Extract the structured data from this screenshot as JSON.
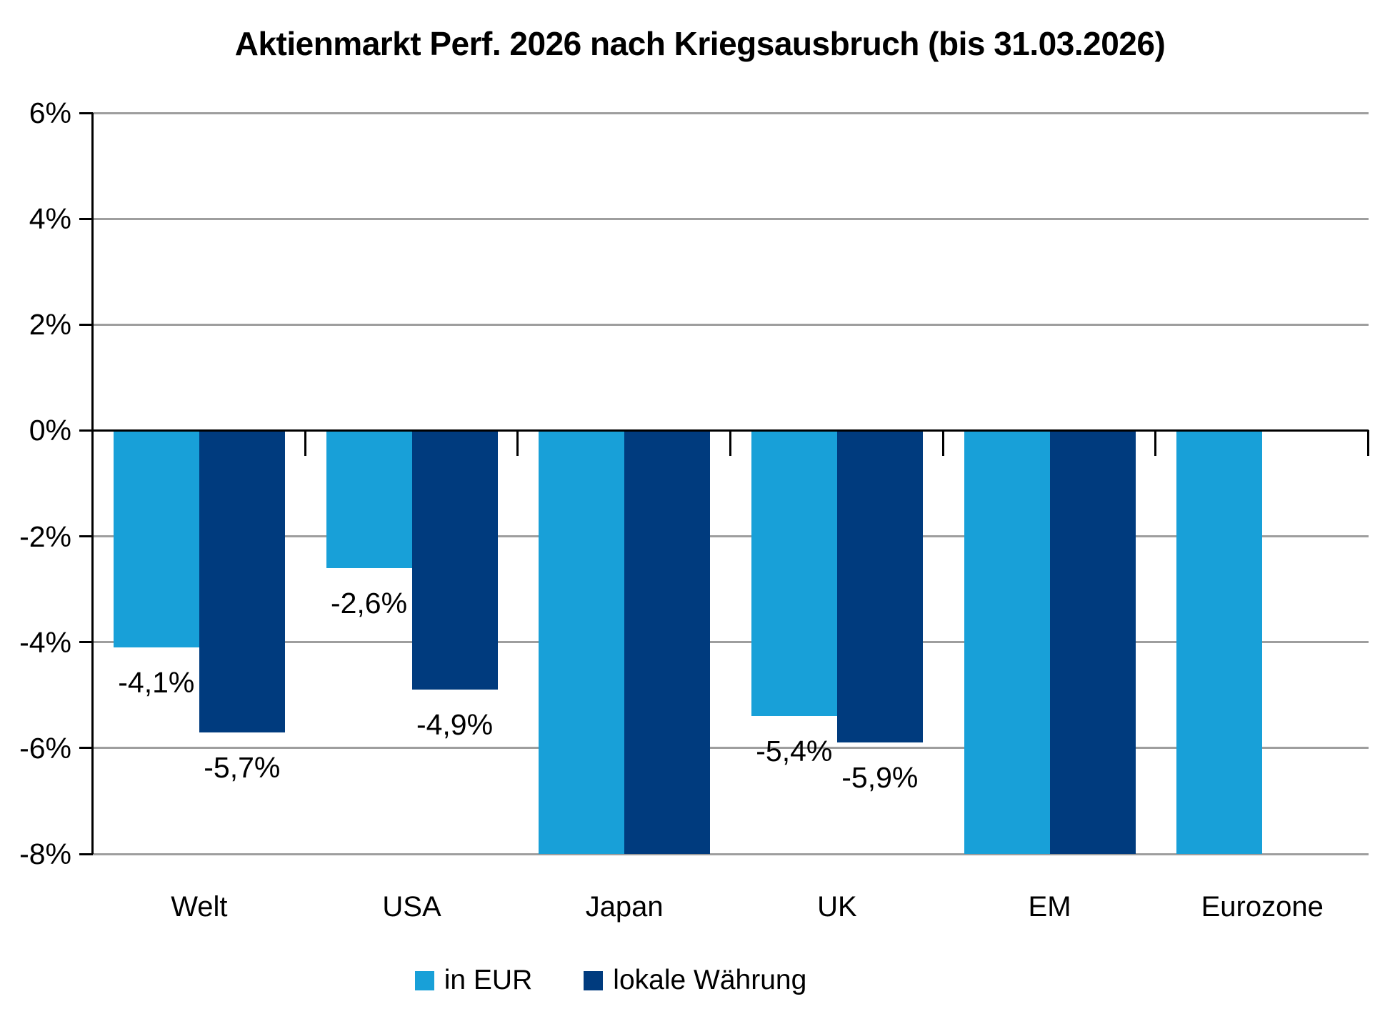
{
  "title": "Aktienmarkt Perf. 2026 nach Kriegsausbruch (bis 31.03.2026)",
  "chart_data": {
    "type": "bar",
    "title": "Aktienmarkt Perf. 2026 nach Kriegsausbruch (bis 31.03.2026)",
    "categories": [
      "Welt",
      "USA",
      "Japan",
      "UK",
      "EM",
      "Eurozone"
    ],
    "series": [
      {
        "name": "in EUR",
        "color": "#18A0D8",
        "values": [
          -4.1,
          -2.6,
          "below_axis_min",
          -5.4,
          "below_axis_min",
          "below_axis_min"
        ],
        "data_labels": [
          "-4,1%",
          "-2,6%",
          null,
          "-5,4%",
          null,
          null
        ]
      },
      {
        "name": "lokale Währung",
        "color": "#003B7E",
        "values": [
          -5.7,
          -4.9,
          "below_axis_min",
          -5.9,
          "below_axis_min",
          null
        ],
        "data_labels": [
          "-5,7%",
          "-4,9%",
          null,
          "-5,9%",
          null,
          null
        ]
      }
    ],
    "y_axis": {
      "min": -8,
      "max": 6,
      "tick_values": [
        6,
        4,
        2,
        0,
        -2,
        -4,
        -6,
        -8
      ],
      "tick_labels": [
        "6%",
        "4%",
        "2%",
        "0%",
        "-2%",
        "-4%",
        "-6%",
        "-8%"
      ]
    },
    "grid": true,
    "legend_position": "bottom"
  },
  "legend": {
    "items": [
      {
        "label": "in EUR",
        "color": "#18A0D8"
      },
      {
        "label": "lokale Währung",
        "color": "#003B7E"
      }
    ]
  },
  "colors": {
    "series_eur": "#18A0D8",
    "series_local": "#003B7E",
    "gridline": "#9e9e9e",
    "axis": "#000000",
    "text": "#000000",
    "background": "#ffffff"
  }
}
